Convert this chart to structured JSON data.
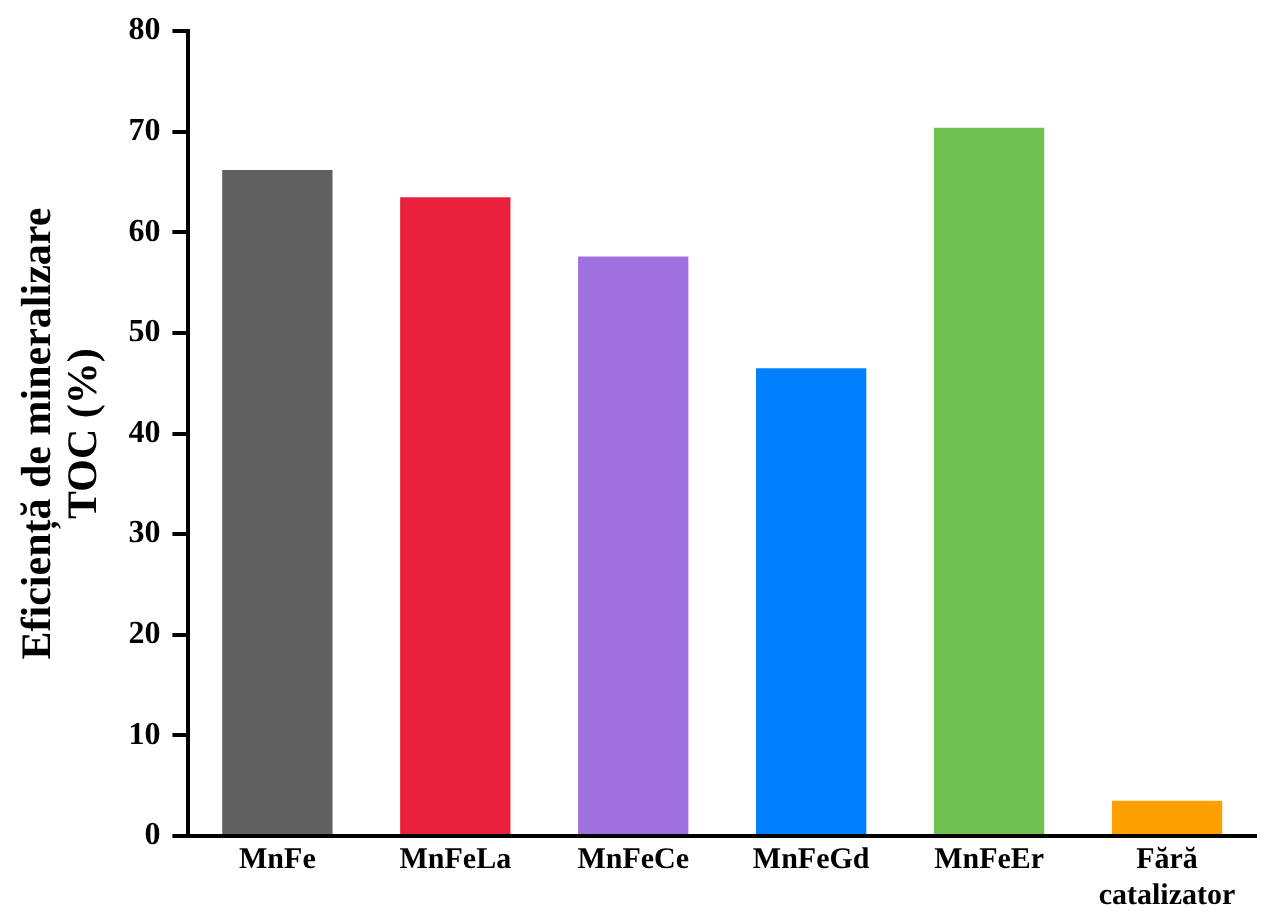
{
  "chart_data": {
    "type": "bar",
    "ylabel": "Eficiență de mineralizare TOC (%)",
    "categories": [
      "MnFe",
      "MnFeLa",
      "MnFeCe",
      "MnFeGd",
      "MnFeEr",
      "Fără catalizator"
    ],
    "values": [
      66.2,
      63.5,
      57.6,
      46.5,
      70.4,
      3.5
    ],
    "colors": [
      "#606060",
      "#e8203c",
      "#a070e0",
      "#0080ff",
      "#70c050",
      "#ffa000"
    ],
    "ylim": [
      0,
      80
    ],
    "yticks": [
      0,
      10,
      20,
      30,
      40,
      50,
      60,
      70,
      80
    ],
    "grid": false,
    "legend": false
  }
}
